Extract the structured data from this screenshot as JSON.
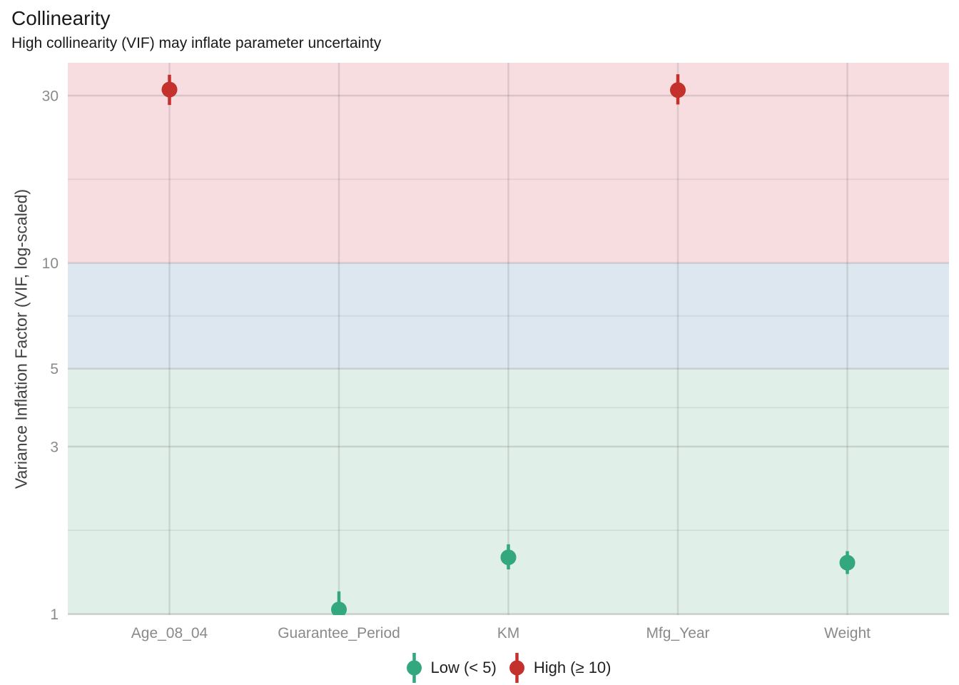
{
  "title": "Collinearity",
  "subtitle": "High collinearity (VIF) may inflate parameter uncertainty",
  "chart_data": {
    "type": "scatter",
    "mark": "pointrange",
    "title": "Collinearity",
    "subtitle": "High collinearity (VIF) may inflate parameter uncertainty",
    "xlabel": "",
    "ylabel": "Variance Inflation Factor (VIF, log-scaled)",
    "y_scale": "log10",
    "y_domain": [
      0.993,
      37.2
    ],
    "y_ticks": [
      1,
      3,
      5,
      10,
      30
    ],
    "categories": [
      "Age_08_04",
      "Guarantee_Period",
      "KM",
      "Mfg_Year",
      "Weight"
    ],
    "series": [
      {
        "category": "Age_08_04",
        "vif": 31.2,
        "ci_low": 28.2,
        "ci_high": 34.4,
        "group": "high"
      },
      {
        "category": "Guarantee_Period",
        "vif": 1.03,
        "ci_low": 1.0,
        "ci_high": 1.16,
        "group": "low"
      },
      {
        "category": "KM",
        "vif": 1.45,
        "ci_low": 1.34,
        "ci_high": 1.58,
        "group": "low"
      },
      {
        "category": "Mfg_Year",
        "vif": 31.1,
        "ci_low": 28.3,
        "ci_high": 34.5,
        "group": "high"
      },
      {
        "category": "Weight",
        "vif": 1.4,
        "ci_low": 1.3,
        "ci_high": 1.51,
        "group": "low"
      }
    ],
    "groups": [
      {
        "id": "low",
        "label": "Low (< 5)",
        "color": "#33a77e"
      },
      {
        "id": "high",
        "label": "High (≥ 10)",
        "color": "#c4302b"
      }
    ],
    "bands": [
      {
        "id": "high-vif",
        "min": 10,
        "max": null,
        "color": "#f8dde0"
      },
      {
        "id": "moderate-vif",
        "min": 5,
        "max": 10,
        "color": "#dde7f0"
      },
      {
        "id": "low-vif",
        "min": null,
        "max": 5,
        "color": "#e1efe9"
      }
    ],
    "grid": true,
    "legend_position": "bottom",
    "text_colors": {
      "title": "#191919",
      "axis_title": "#404040",
      "tick_label": "#8a8a8a",
      "legend_label": "#1f1f1f"
    }
  }
}
